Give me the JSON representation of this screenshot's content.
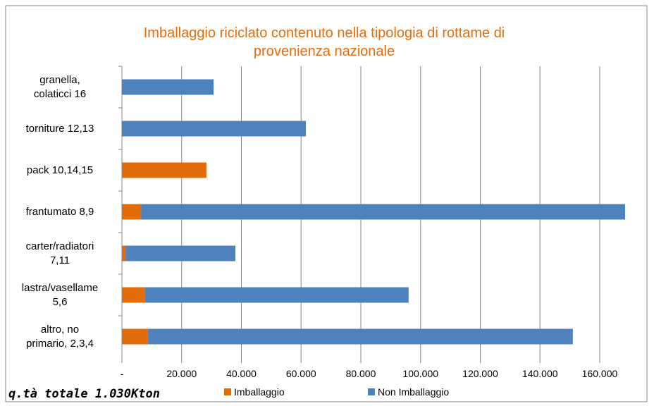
{
  "chart_data": {
    "type": "bar",
    "orientation": "horizontal",
    "stacked": true,
    "title": "Imballaggio riciclato contenuto nella tipologia di rottame di\nprovenienza nazionale",
    "categories": [
      "granella,\ncolaticci 16",
      "torniture 12,13",
      "pack 10,14,15",
      "frantumato 8,9",
      "carter/radiatori\n7,11",
      "lastra/vasellame\n5,6",
      "altro, no\nprimario, 2,3,4"
    ],
    "series": [
      {
        "name": "Imballaggio",
        "color": "#e36c0a",
        "values": [
          0,
          0,
          28300,
          6400,
          1200,
          7600,
          8700
        ]
      },
      {
        "name": "Non Imballaggio",
        "color": "#4f81bd",
        "values": [
          30700,
          61600,
          0,
          162100,
          36800,
          88400,
          142300
        ]
      }
    ],
    "xlim": [
      0,
      168500
    ],
    "xticks": [
      {
        "value": 0,
        "label": "-"
      },
      {
        "value": 20000,
        "label": "20.000"
      },
      {
        "value": 40000,
        "label": "40.000"
      },
      {
        "value": 60000,
        "label": "60.000"
      },
      {
        "value": 80000,
        "label": "80.000"
      },
      {
        "value": 100000,
        "label": "100.000"
      },
      {
        "value": 120000,
        "label": "120.000"
      },
      {
        "value": 140000,
        "label": "140.000"
      },
      {
        "value": 160000,
        "label": "160.000"
      }
    ],
    "grid": true,
    "legend": "bottom",
    "annotation": "q.tà totale 1.030Kton"
  }
}
